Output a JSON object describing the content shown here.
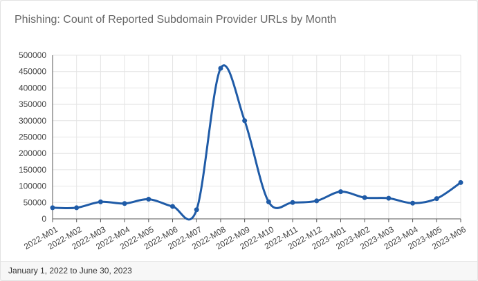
{
  "card": {
    "title": "Phishing: Count of Reported Subdomain Provider URLs by Month",
    "footer": "January 1, 2022 to June 30, 2023"
  },
  "colors": {
    "line": "#1f5ba7",
    "grid": "#e4e4e4",
    "axis": "#555555"
  },
  "chart_data": {
    "type": "line",
    "title": "Phishing: Count of Reported Subdomain Provider URLs by Month",
    "xlabel": "",
    "ylabel": "",
    "categories": [
      "2022-M01",
      "2022-M02",
      "2022-M03",
      "2022-M04",
      "2022-M05",
      "2022-M06",
      "2022-M07",
      "2022-M08",
      "2022-M09",
      "2022-M10",
      "2022-M11",
      "2022-M12",
      "2023-M01",
      "2023-M02",
      "2023-M03",
      "2023-M04",
      "2023-M05",
      "2023-M06"
    ],
    "series": [
      {
        "name": "Subdomain Provider URLs",
        "values": [
          34000,
          34000,
          52000,
          47000,
          60000,
          38000,
          28000,
          460000,
          300000,
          52000,
          50000,
          55000,
          83000,
          65000,
          63000,
          48000,
          62000,
          111000
        ]
      }
    ],
    "ylim": [
      0,
      500000
    ],
    "yticks": [
      0,
      50000,
      100000,
      150000,
      200000,
      250000,
      300000,
      350000,
      400000,
      450000,
      500000
    ],
    "grid": true,
    "legend": "none",
    "smooth": true
  }
}
